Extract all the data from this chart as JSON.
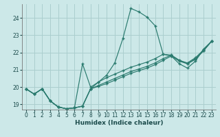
{
  "xlabel": "Humidex (Indice chaleur)",
  "xlim": [
    -0.5,
    23.5
  ],
  "ylim": [
    18.7,
    24.8
  ],
  "yticks": [
    19,
    20,
    21,
    22,
    23,
    24
  ],
  "xticks": [
    0,
    1,
    2,
    3,
    4,
    5,
    6,
    7,
    8,
    9,
    10,
    11,
    12,
    13,
    14,
    15,
    16,
    17,
    18,
    19,
    20,
    21,
    22,
    23
  ],
  "bg_color": "#cce8e8",
  "line_color": "#2a7a6e",
  "grid_color": "#aacece",
  "lines": [
    {
      "x": [
        0,
        1,
        2,
        3,
        4,
        5,
        6,
        7,
        8,
        9,
        10,
        11,
        12,
        13,
        14,
        15,
        16,
        17,
        18,
        19,
        20,
        21,
        22,
        23
      ],
      "y": [
        19.9,
        19.6,
        19.9,
        19.2,
        18.85,
        18.75,
        18.8,
        18.9,
        19.9,
        20.3,
        20.7,
        21.4,
        22.8,
        24.55,
        24.35,
        24.05,
        23.55,
        21.9,
        21.8,
        21.35,
        21.1,
        21.5,
        22.2,
        22.65
      ]
    },
    {
      "x": [
        0,
        1,
        2,
        3,
        4,
        5,
        6,
        7,
        8,
        9,
        10,
        11,
        12,
        13,
        14,
        15,
        16,
        17,
        18,
        19,
        20,
        21,
        22,
        23
      ],
      "y": [
        19.9,
        19.6,
        19.9,
        19.2,
        18.85,
        18.75,
        18.8,
        21.35,
        20.0,
        20.3,
        20.55,
        20.75,
        20.95,
        21.15,
        21.3,
        21.45,
        21.65,
        21.9,
        21.85,
        21.55,
        21.35,
        21.6,
        22.1,
        22.65
      ]
    },
    {
      "x": [
        0,
        1,
        2,
        3,
        4,
        5,
        6,
        7,
        8,
        9,
        10,
        11,
        12,
        13,
        14,
        15,
        16,
        17,
        18,
        19,
        20,
        21,
        22,
        23
      ],
      "y": [
        19.9,
        19.6,
        19.9,
        19.2,
        18.85,
        18.75,
        18.8,
        18.9,
        19.9,
        20.1,
        20.3,
        20.5,
        20.7,
        20.9,
        21.05,
        21.2,
        21.4,
        21.65,
        21.85,
        21.55,
        21.4,
        21.7,
        22.15,
        22.65
      ]
    },
    {
      "x": [
        0,
        1,
        2,
        3,
        4,
        5,
        6,
        7,
        8,
        9,
        10,
        11,
        12,
        13,
        14,
        15,
        16,
        17,
        18,
        19,
        20,
        21,
        22,
        23
      ],
      "y": [
        19.9,
        19.6,
        19.9,
        19.2,
        18.85,
        18.75,
        18.8,
        18.9,
        19.9,
        20.05,
        20.2,
        20.4,
        20.6,
        20.8,
        20.95,
        21.1,
        21.3,
        21.55,
        21.8,
        21.5,
        21.35,
        21.65,
        22.1,
        22.65
      ]
    }
  ]
}
